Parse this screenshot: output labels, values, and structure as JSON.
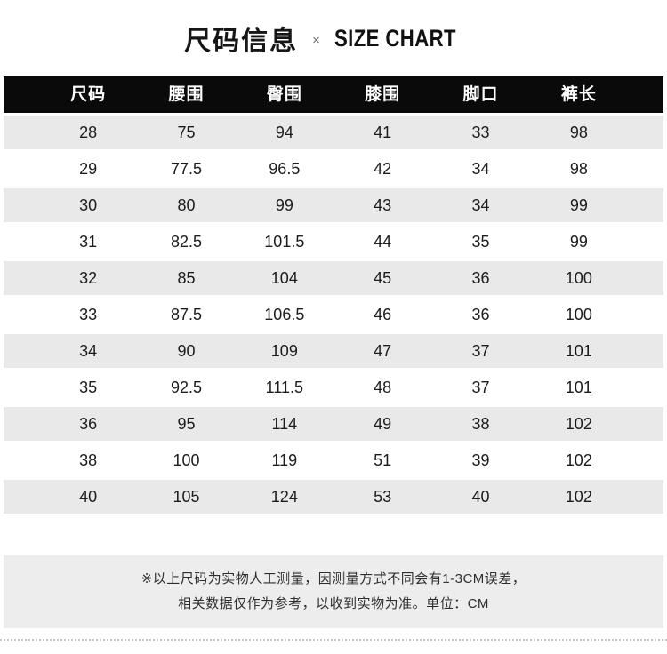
{
  "title": {
    "cn": "尺码信息",
    "separator": "×",
    "en": "SIZE CHART"
  },
  "table": {
    "headers": [
      "尺码",
      "腰围",
      "臀围",
      "膝围",
      "脚口",
      "裤长"
    ],
    "rows": [
      [
        "28",
        "75",
        "94",
        "41",
        "33",
        "98"
      ],
      [
        "29",
        "77.5",
        "96.5",
        "42",
        "34",
        "98"
      ],
      [
        "30",
        "80",
        "99",
        "43",
        "34",
        "99"
      ],
      [
        "31",
        "82.5",
        "101.5",
        "44",
        "35",
        "99"
      ],
      [
        "32",
        "85",
        "104",
        "45",
        "36",
        "100"
      ],
      [
        "33",
        "87.5",
        "106.5",
        "46",
        "36",
        "100"
      ],
      [
        "34",
        "90",
        "109",
        "47",
        "37",
        "101"
      ],
      [
        "35",
        "92.5",
        "111.5",
        "48",
        "37",
        "101"
      ],
      [
        "36",
        "95",
        "114",
        "49",
        "38",
        "102"
      ],
      [
        "38",
        "100",
        "119",
        "51",
        "39",
        "102"
      ],
      [
        "40",
        "105",
        "124",
        "53",
        "40",
        "102"
      ]
    ],
    "unit": "CM"
  },
  "footer": {
    "line1": "※以上尺码为实物人工测量，因测量方式不同会有1-3CM误差，",
    "line2": "相关数据仅作为参考，以收到实物为准。单位：CM"
  },
  "colors": {
    "header_bg": "#0a0a0a",
    "header_text": "#ffffff",
    "stripe_bg": "#e9e9e9",
    "footer_bg": "#ededed",
    "page_bg": "#ffffff"
  }
}
